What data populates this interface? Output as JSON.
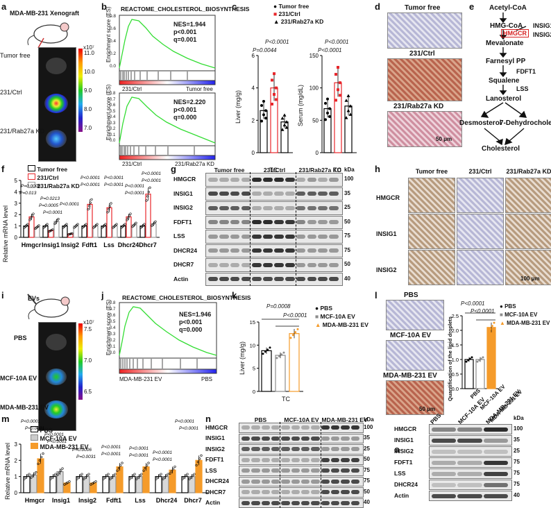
{
  "panels": {
    "a": {
      "label": "a",
      "title": "MDA-MB-231 Xenograft",
      "rows": [
        "Tumor free",
        "231/Ctrl",
        "231/Rab27a KD"
      ],
      "scale_exp": "x10⁷",
      "scale_ticks": [
        "11.0",
        "10.0",
        "9.0",
        "8.0",
        "7.0"
      ]
    },
    "b": {
      "label": "b",
      "title": "REACTOME_CHOLESTEROL_BIOSYNTHESIS",
      "ylabel": "Enrichment score (ES)",
      "plot1": {
        "stats": [
          "NES=1.944",
          "p<0.001",
          "q=0.001"
        ],
        "left": "231/Ctrl",
        "right": "Tumor free",
        "ticks": [
          "0.8",
          "0.6",
          "0.4",
          "0.2",
          "0.0"
        ]
      },
      "plot2": {
        "stats": [
          "NES=2.220",
          "p<0.001",
          "q=0.000"
        ],
        "left": "231/Ctrl",
        "right": "231/Rab27a KD",
        "ticks": [
          "0.8",
          "0.7",
          "0.6",
          "0.5",
          "0.4",
          "0.3",
          "0.2",
          "0.1",
          "0.0"
        ]
      }
    },
    "c": {
      "label": "c",
      "legend": [
        "Tumor free",
        "231/Ctrl",
        "231/Rab27a KD"
      ],
      "liver_ylabel": "Liver (mg/g)",
      "serum_ylabel": "Serum (mg/dL)",
      "xlabel": "TC",
      "liver_p": [
        "P=0.0044",
        "P<0.0001"
      ],
      "serum_p": [
        "P<0.0001",
        "P<0.0001"
      ],
      "liver_ticks": [
        "0",
        "2",
        "4",
        "6"
      ],
      "serum_ticks": [
        "0",
        "50",
        "100",
        "150"
      ]
    },
    "d": {
      "label": "d",
      "rows": [
        "Tumor free",
        "231/Ctrl",
        "231/Rab27a KD"
      ],
      "scale": "50 μm"
    },
    "e": {
      "label": "e",
      "nodes": [
        "Acetyl-CoA",
        "HMG-CoA",
        "HMGCR",
        "INSIG1",
        "INSIG2",
        "Mevalonate",
        "Farnesyl PP",
        "FDFT1",
        "Squalene",
        "LSS",
        "Lanosterol",
        "Desmosterol",
        "7-Dehydrocholesterol",
        "Cholesterol"
      ]
    },
    "f": {
      "label": "f",
      "legend": [
        "Tumor free",
        "231/Ctrl",
        "231/Rab27a KD"
      ],
      "ylabel": "Relative mRNA level",
      "ticks": [
        "0",
        "1",
        "2",
        "3",
        "4",
        "5"
      ],
      "genes": [
        "Hmgcr",
        "Insig1",
        "Insig2",
        "Fdft1",
        "Lss",
        "Dhcr24",
        "Dhcr7"
      ],
      "pvals": [
        "P=0.0005",
        "P=0.013",
        "P=0.0213",
        "P=0.0005",
        "P<0.0001",
        "P<0.0001",
        "P<0.0001",
        "P<0.0001",
        "P<0.0001",
        "P<0.0001",
        "P<0.0001",
        "P<0.0001",
        "P<0.0001",
        "P<0.0001"
      ]
    },
    "g": {
      "label": "g",
      "groups": [
        "Tumor free",
        "231/Ctrl",
        "231/Rab27a KD"
      ],
      "unit": "kDa",
      "rows": [
        {
          "name": "HMGCR",
          "kda": "100"
        },
        {
          "name": "INSIG1",
          "kda": "35"
        },
        {
          "name": "INSIG2",
          "kda": "25"
        },
        {
          "name": "FDFT1",
          "kda": "50"
        },
        {
          "name": "LSS",
          "kda": "75"
        },
        {
          "name": "DHCR24",
          "kda": "75"
        },
        {
          "name": "DHCR7",
          "kda": "50"
        },
        {
          "name": "Actin",
          "kda": "40"
        }
      ]
    },
    "h": {
      "label": "h",
      "cols": [
        "Tumor free",
        "231/Ctrl",
        "231/Rab27a KD"
      ],
      "rows": [
        "HMGCR",
        "INSIG1",
        "INSIG2"
      ],
      "scale": "100 μm"
    },
    "i": {
      "label": "i",
      "title": "EVs",
      "rows": [
        "PBS",
        "MCF-10A EV",
        "MDA-MB-231 EV"
      ],
      "scale_exp": "x10⁷",
      "scale_ticks": [
        "7.5",
        "7.0",
        "6.5"
      ]
    },
    "j": {
      "label": "j",
      "title": "REACTOME_CHOLESTEROL_BIOSYNTHESIS",
      "ylabel": "Enrichment score (ES)",
      "stats": [
        "NES=1.946",
        "p<0.001",
        "q=0.000"
      ],
      "left": "MDA-MB-231 EV",
      "right": "PBS",
      "ticks": [
        "0.8",
        "0.7",
        "0.6",
        "0.5",
        "0.4",
        "0.3",
        "0.2",
        "0.1",
        "0.0"
      ]
    },
    "k": {
      "label": "k",
      "legend": [
        "PBS",
        "MCF-10A EV",
        "MDA-MB-231 EV"
      ],
      "ylabel": "Liver (mg/g)",
      "xlabel": "TC",
      "pvals": [
        "P=0.0008",
        "P<0.0001"
      ],
      "ticks": [
        "0",
        "5",
        "10",
        "15"
      ]
    },
    "l": {
      "label": "l",
      "rows": [
        "PBS",
        "MCF-10A EV",
        "MDA-MB-231 EV"
      ],
      "scale": "50 μm",
      "ylabel": "Quantification of the lipid droplets",
      "legend": [
        "PBS",
        "MCF-10A EV",
        "MDA-MB-231 EV"
      ],
      "pvals": [
        "P<0.0001",
        "P<0.0001"
      ],
      "ticks": [
        "0.0",
        "0.5",
        "1.0",
        "1.5",
        "2.0",
        "2.5"
      ]
    },
    "m": {
      "label": "m",
      "legend": [
        "PBS",
        "MCF-10A EV",
        "MDA-MB-231 EV"
      ],
      "ylabel": "Relative mRNA level",
      "ticks": [
        "0",
        "1",
        "2",
        "3"
      ],
      "genes": [
        "Hmgcr",
        "Insig1",
        "Insig2",
        "Fdft1",
        "Lss",
        "Dhcr24",
        "Dhcr7"
      ],
      "pvals": [
        "P<0.0001",
        "P<0.0001",
        "P<0.0001",
        "P<0.0001",
        "P=0.0006",
        "P=0.0031",
        "P<0.0001",
        "P<0.0001",
        "P<0.0001",
        "P<0.0001",
        "P<0.0001",
        "P<0.0001",
        "P<0.0001",
        "P<0.0001"
      ]
    },
    "n": {
      "label": "n",
      "groups": [
        "PBS",
        "MCF-10A EV",
        "MDA-MB-231 EV"
      ],
      "unit": "kDa",
      "rows": [
        {
          "name": "HMGCR",
          "kda": "100"
        },
        {
          "name": "INSIG1",
          "kda": "35"
        },
        {
          "name": "INSIG2",
          "kda": "25"
        },
        {
          "name": "FDFT1",
          "kda": "50"
        },
        {
          "name": "LSS",
          "kda": "75"
        },
        {
          "name": "DHCR24",
          "kda": "75"
        },
        {
          "name": "DHCR7",
          "kda": "50"
        },
        {
          "name": "Actin",
          "kda": "40"
        }
      ]
    },
    "o": {
      "label": "o",
      "groups": [
        "PBS",
        "MCF-10A EV",
        "MDA-MB-231 EV"
      ],
      "unit": "kDa",
      "rows": [
        {
          "name": "HMGCR",
          "kda": "100"
        },
        {
          "name": "INSIG1",
          "kda": "35"
        },
        {
          "name": "INSIG2",
          "kda": "25"
        },
        {
          "name": "FDFT1",
          "kda": "75"
        },
        {
          "name": "LSS",
          "kda": "75"
        },
        {
          "name": "DHCR24",
          "kda": "75"
        },
        {
          "name": "Actin",
          "kda": "40"
        }
      ]
    }
  },
  "colors": {
    "tumor_free": "#000000",
    "ctrl": "#e8252a",
    "kd": "#9a9a9a",
    "pbs": "#000000",
    "mcf": "#8c8c8c",
    "mda": "#f59b2a",
    "gsea": "#33dd33"
  },
  "chart_data": [
    {
      "type": "scatter",
      "panel": "c-liver",
      "ylabel": "Liver (mg/g)",
      "categories": [
        "TC"
      ],
      "series": [
        {
          "name": "Tumor free",
          "values": [
            2.6
          ]
        },
        {
          "name": "231/Ctrl",
          "values": [
            4.0
          ]
        },
        {
          "name": "231/Rab27a KD",
          "values": [
            1.9
          ]
        }
      ],
      "ylim": [
        0,
        6
      ]
    },
    {
      "type": "scatter",
      "panel": "c-serum",
      "ylabel": "Serum (mg/dL)",
      "categories": [
        "TC"
      ],
      "series": [
        {
          "name": "Tumor free",
          "values": [
            68
          ]
        },
        {
          "name": "231/Ctrl",
          "values": [
            108
          ]
        },
        {
          "name": "231/Rab27a KD",
          "values": [
            72
          ]
        }
      ],
      "ylim": [
        0,
        150
      ]
    },
    {
      "type": "bar",
      "panel": "f",
      "ylabel": "Relative mRNA level",
      "categories": [
        "Hmgcr",
        "Insig1",
        "Insig2",
        "Fdft1",
        "Lss",
        "Dhcr24",
        "Dhcr7"
      ],
      "series": [
        {
          "name": "Tumor free",
          "values": [
            1.0,
            1.0,
            1.0,
            1.0,
            1.0,
            1.0,
            1.0
          ]
        },
        {
          "name": "231/Ctrl",
          "values": [
            1.8,
            0.6,
            0.3,
            2.9,
            2.6,
            1.8,
            3.8
          ]
        },
        {
          "name": "231/Rab27a KD",
          "values": [
            0.9,
            1.4,
            1.0,
            1.0,
            1.0,
            1.1,
            1.2
          ]
        }
      ],
      "ylim": [
        0,
        5
      ]
    },
    {
      "type": "bar",
      "panel": "k",
      "ylabel": "Liver (mg/g)",
      "categories": [
        "TC"
      ],
      "series": [
        {
          "name": "PBS",
          "values": [
            8.8
          ]
        },
        {
          "name": "MCF-10A EV",
          "values": [
            7.8
          ]
        },
        {
          "name": "MDA-MB-231 EV",
          "values": [
            12.5
          ]
        }
      ],
      "ylim": [
        0,
        15
      ]
    },
    {
      "type": "bar",
      "panel": "l",
      "ylabel": "Quantification of the lipid droplets",
      "categories": [
        "PBS",
        "MCF-10A EV",
        "MDA-MB-231 EV"
      ],
      "series": [
        {
          "name": "",
          "values": [
            1.0,
            1.0,
            2.1
          ]
        }
      ],
      "ylim": [
        0,
        2.5
      ]
    },
    {
      "type": "bar",
      "panel": "m",
      "ylabel": "Relative mRNA level",
      "categories": [
        "Hmgcr",
        "Insig1",
        "Insig2",
        "Fdft1",
        "Lss",
        "Dhcr24",
        "Dhcr7"
      ],
      "series": [
        {
          "name": "PBS",
          "values": [
            1.0,
            1.0,
            1.0,
            1.0,
            1.0,
            1.0,
            1.0
          ]
        },
        {
          "name": "MCF-10A EV",
          "values": [
            1.1,
            1.3,
            1.0,
            1.0,
            1.0,
            1.0,
            1.0
          ]
        },
        {
          "name": "MDA-MB-231 EV",
          "values": [
            2.1,
            0.6,
            0.6,
            1.6,
            1.6,
            1.4,
            2.0
          ]
        }
      ],
      "ylim": [
        0,
        3
      ]
    }
  ]
}
